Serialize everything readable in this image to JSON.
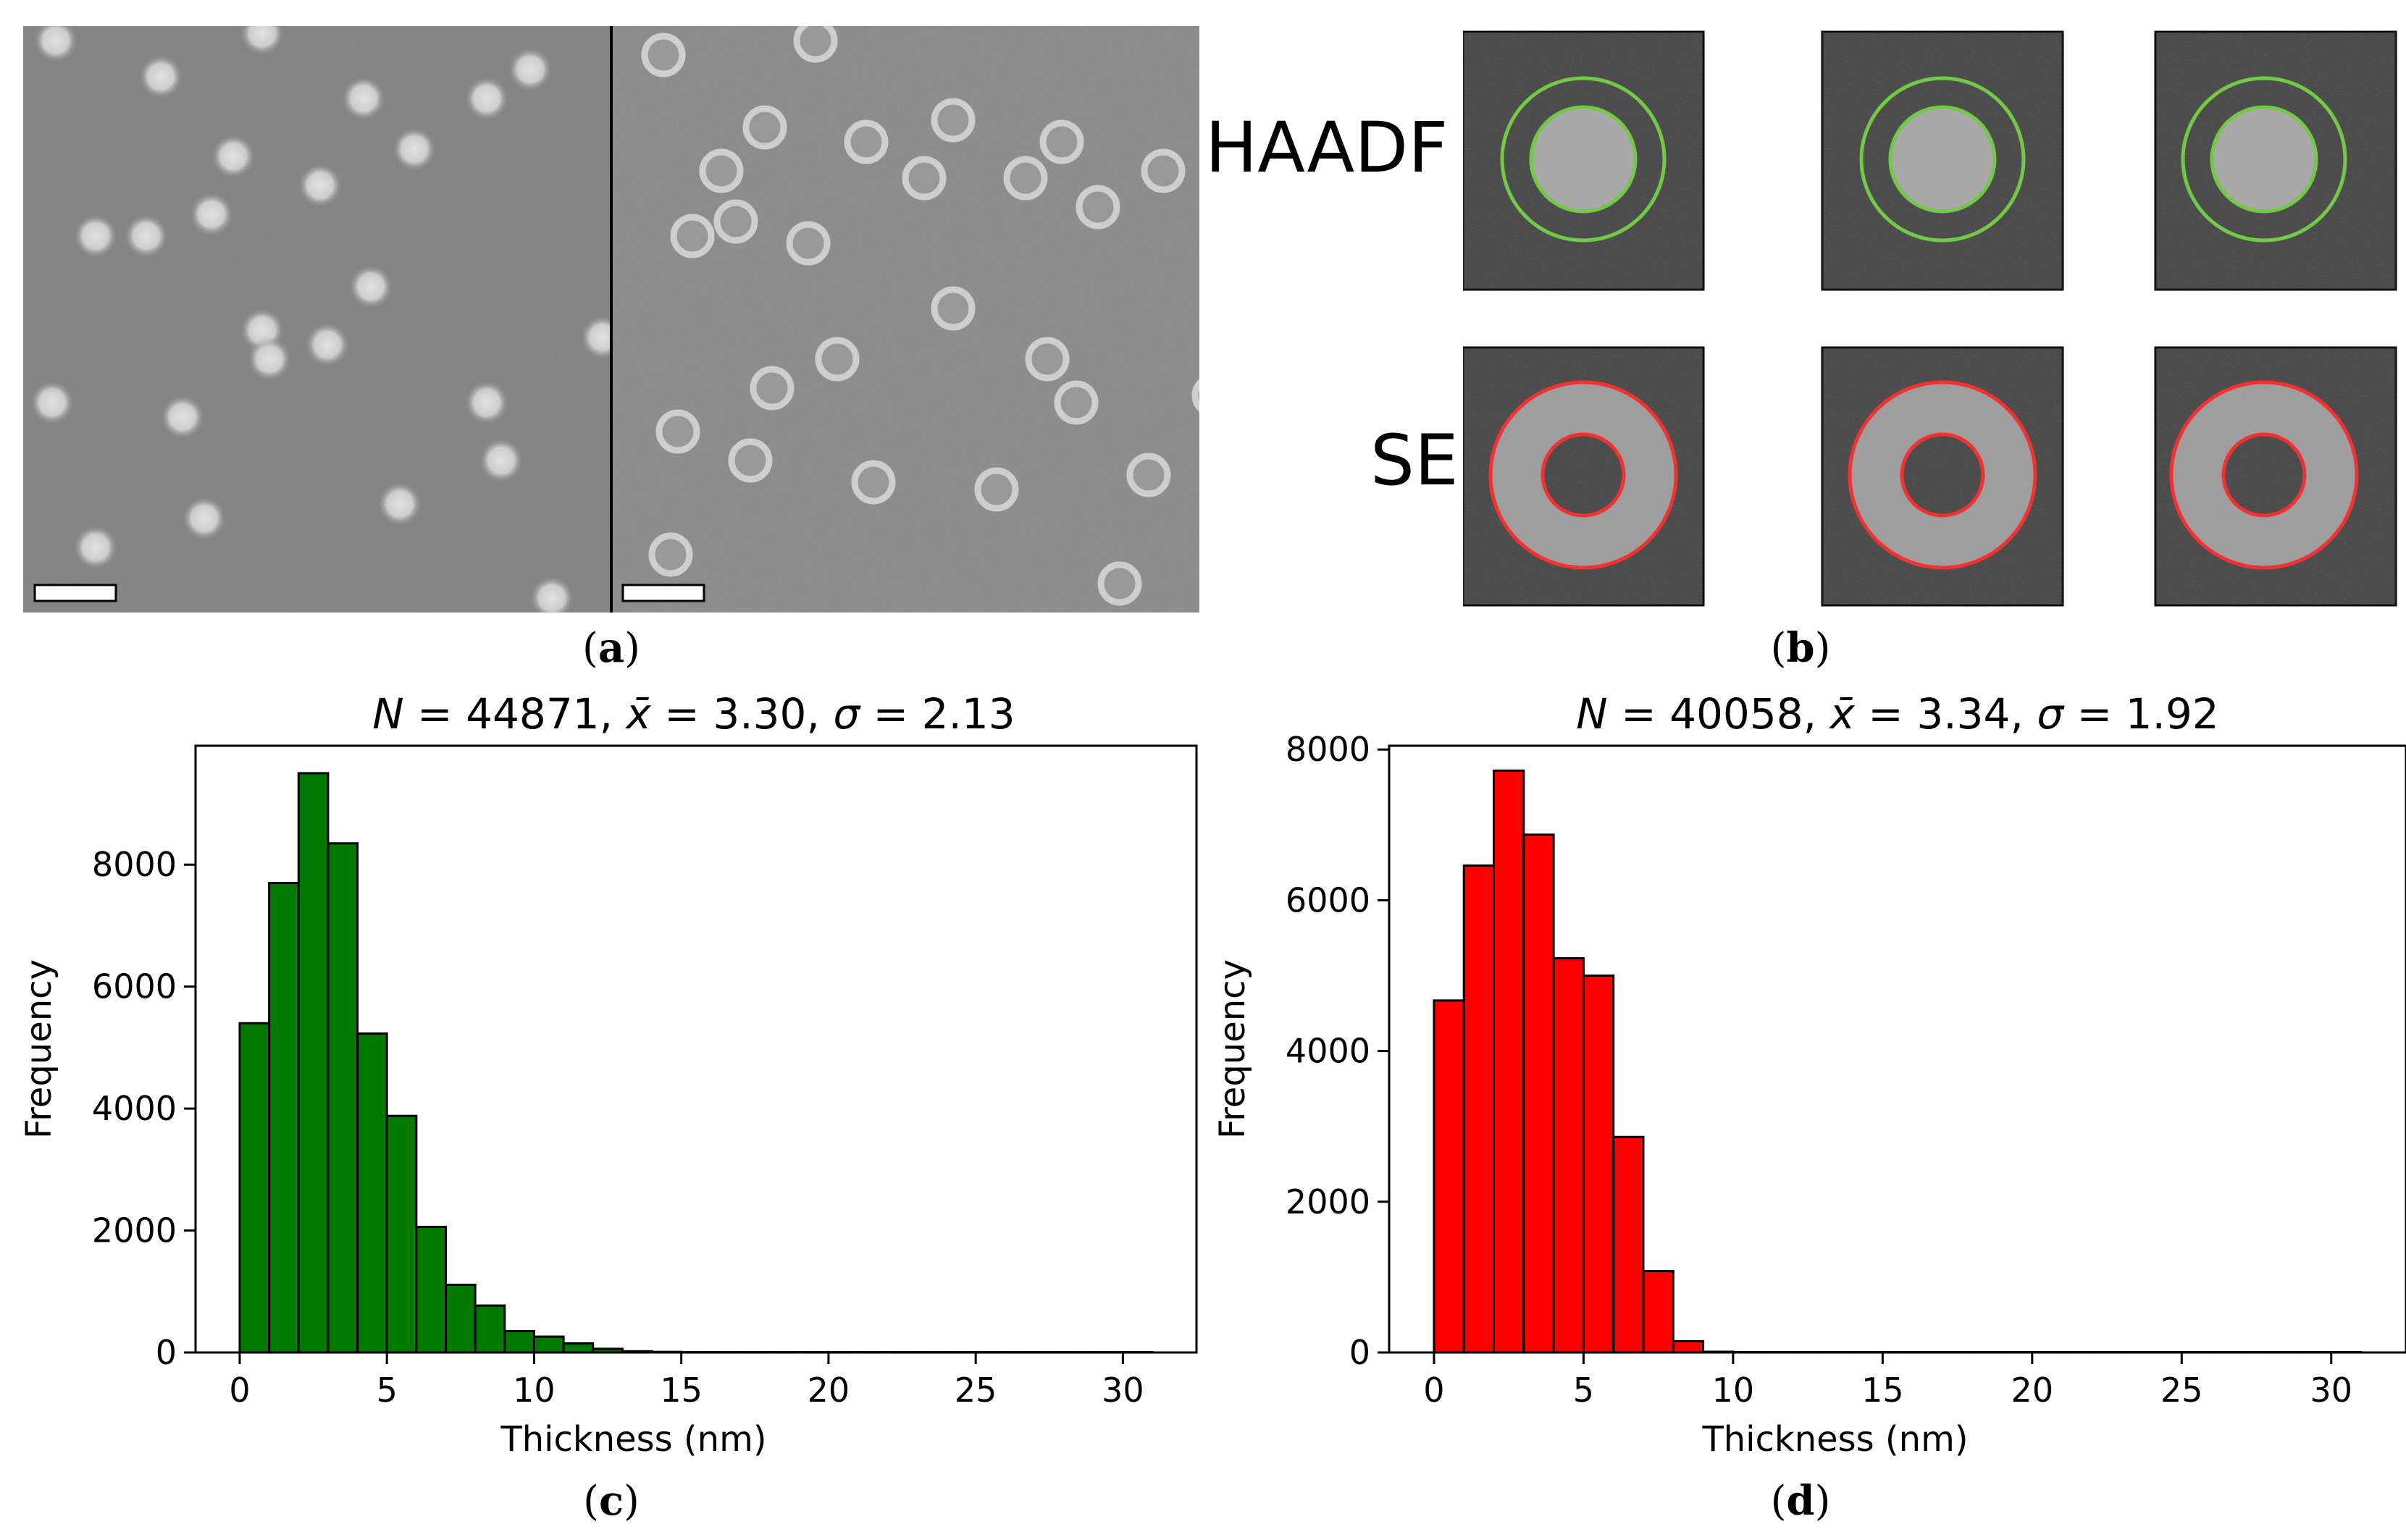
{
  "panel_a": {
    "label": "a",
    "left_pane": {
      "blobs": [
        [
          45,
          20
        ],
        [
          190,
          70
        ],
        [
          330,
          10
        ],
        [
          470,
          100
        ],
        [
          640,
          100
        ],
        [
          700,
          60
        ],
        [
          540,
          170
        ],
        [
          410,
          220
        ],
        [
          290,
          180
        ],
        [
          100,
          290
        ],
        [
          170,
          290
        ],
        [
          260,
          260
        ],
        [
          480,
          360
        ],
        [
          330,
          420
        ],
        [
          420,
          440
        ],
        [
          40,
          520
        ],
        [
          220,
          540
        ],
        [
          340,
          460
        ],
        [
          640,
          520
        ],
        [
          660,
          600
        ],
        [
          250,
          680
        ],
        [
          520,
          660
        ],
        [
          100,
          720
        ],
        [
          730,
          790
        ],
        [
          800,
          430
        ]
      ]
    },
    "right_pane": {
      "rings": [
        [
          70,
          40
        ],
        [
          280,
          20
        ],
        [
          210,
          140
        ],
        [
          350,
          160
        ],
        [
          470,
          130
        ],
        [
          430,
          210
        ],
        [
          620,
          160
        ],
        [
          570,
          210
        ],
        [
          670,
          250
        ],
        [
          150,
          200
        ],
        [
          270,
          300
        ],
        [
          110,
          290
        ],
        [
          170,
          270
        ],
        [
          220,
          500
        ],
        [
          310,
          460
        ],
        [
          90,
          560
        ],
        [
          190,
          600
        ],
        [
          470,
          390
        ],
        [
          640,
          520
        ],
        [
          600,
          460
        ],
        [
          530,
          640
        ],
        [
          360,
          630
        ],
        [
          80,
          730
        ],
        [
          740,
          620
        ],
        [
          700,
          770
        ],
        [
          830,
          510
        ],
        [
          760,
          200
        ]
      ]
    }
  },
  "panel_b": {
    "label": "b",
    "rows": [
      {
        "label": "HAADF",
        "color": "#66cc33"
      },
      {
        "label": "SE",
        "color": "#ff1a1a"
      }
    ]
  },
  "panel_c": {
    "label": "c"
  },
  "panel_d": {
    "label": "d"
  },
  "chart_data": [
    {
      "type": "bar",
      "title": "N = 44871, x̄ = 3.30, σ = 2.13",
      "title_parts": {
        "n": "44871",
        "mean": "3.30",
        "sd": "2.13"
      },
      "xlabel": "Thickness (nm)",
      "ylabel": "Frequency",
      "xlim": [
        -1.5,
        32.5
      ],
      "ylim": [
        0,
        9950
      ],
      "xticks": [
        0,
        5,
        10,
        15,
        20,
        25,
        30
      ],
      "yticks": [
        0,
        2000,
        4000,
        6000,
        8000
      ],
      "bin_width": 1,
      "bin_start": 0,
      "values": [
        5400,
        7700,
        9500,
        8350,
        5230,
        3880,
        2060,
        1110,
        770,
        350,
        260,
        150,
        60,
        20,
        10,
        5,
        5,
        5,
        5,
        5,
        5,
        5,
        5,
        5,
        5,
        5,
        5,
        5,
        5,
        5,
        5
      ],
      "color": "#007a00"
    },
    {
      "type": "bar",
      "title": "N = 40058, x̄ = 3.34, σ = 1.92",
      "title_parts": {
        "n": "40058",
        "mean": "3.34",
        "sd": "1.92"
      },
      "xlabel": "Thickness (nm)",
      "ylabel": "Frequency",
      "xlim": [
        -1.5,
        32.5
      ],
      "ylim": [
        0,
        8050
      ],
      "xticks": [
        0,
        5,
        10,
        15,
        20,
        25,
        30
      ],
      "yticks": [
        0,
        2000,
        4000,
        6000,
        8000
      ],
      "bin_width": 1,
      "bin_start": 0,
      "values": [
        4670,
        6460,
        7720,
        6870,
        5230,
        5000,
        2860,
        1080,
        150,
        10,
        5,
        5,
        5,
        5,
        5,
        5,
        5,
        5,
        5,
        5,
        5,
        5,
        5,
        5,
        5,
        5,
        5,
        5,
        5,
        5,
        5
      ],
      "color": "#ff0000"
    }
  ]
}
